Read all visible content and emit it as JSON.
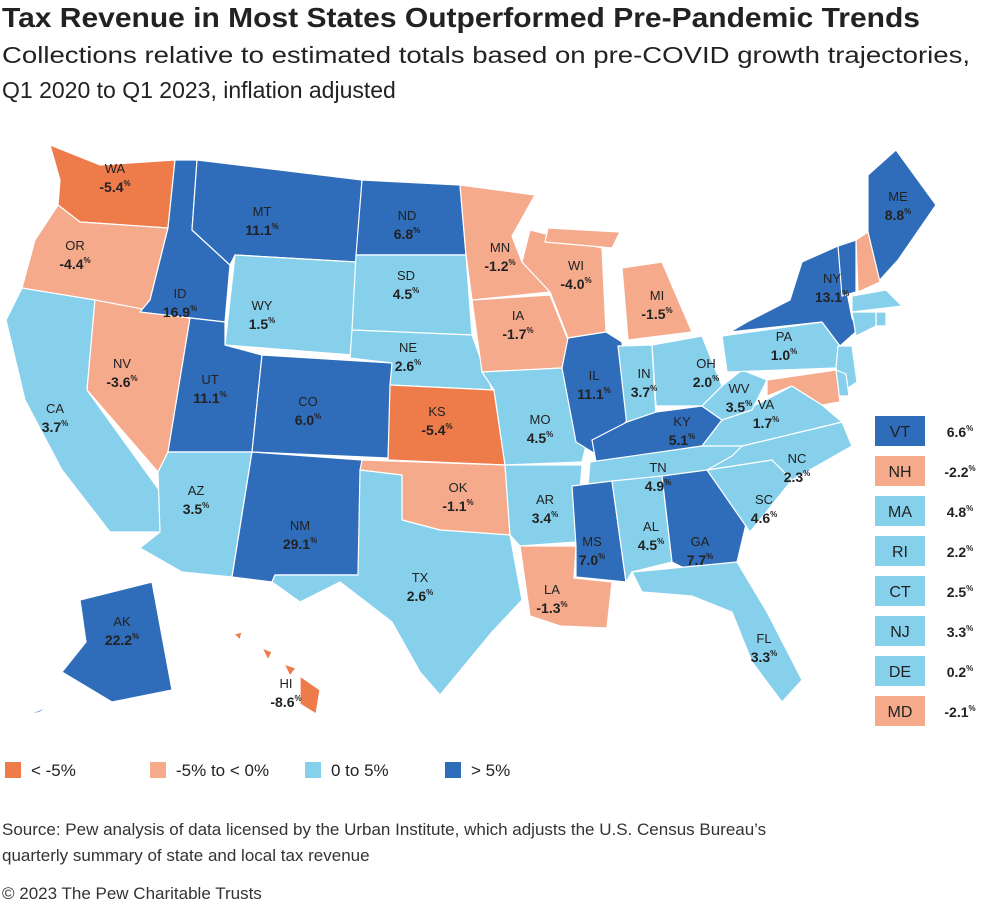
{
  "header": {
    "title": "Tax Revenue in Most States Outperformed Pre-Pandemic Trends",
    "subtitle_lines": [
      "Collections relative to estimated totals based on pre-COVID growth trajectories,",
      "Q1 2020 to Q1 2023, inflation adjusted"
    ]
  },
  "unit": "%",
  "bins": [
    {
      "label": "< -5%",
      "to": -5,
      "color": "#ee7c4b"
    },
    {
      "label": "-5% to < 0%",
      "from": -5,
      "to": 0,
      "color": "#f5aa8b"
    },
    {
      "label": "0 to 5%",
      "from": 0,
      "to": 5,
      "color": "#87d0ec"
    },
    {
      "label": "> 5%",
      "from": 5,
      "color": "#2f6cb9"
    }
  ],
  "states": [
    {
      "abbr": "WA",
      "value": -5.4,
      "label": "-5.4"
    },
    {
      "abbr": "OR",
      "value": -4.4,
      "label": "-4.4"
    },
    {
      "abbr": "CA",
      "value": 3.7,
      "label": "3.7"
    },
    {
      "abbr": "NV",
      "value": -3.6,
      "label": "-3.6"
    },
    {
      "abbr": "ID",
      "value": 16.9,
      "label": "16.9"
    },
    {
      "abbr": "MT",
      "value": 11.1,
      "label": "11.1"
    },
    {
      "abbr": "WY",
      "value": 1.5,
      "label": "1.5"
    },
    {
      "abbr": "UT",
      "value": 11.1,
      "label": "11.1"
    },
    {
      "abbr": "CO",
      "value": 6.0,
      "label": "6.0"
    },
    {
      "abbr": "AZ",
      "value": 3.5,
      "label": "3.5"
    },
    {
      "abbr": "NM",
      "value": 29.1,
      "label": "29.1"
    },
    {
      "abbr": "ND",
      "value": 6.8,
      "label": "6.8"
    },
    {
      "abbr": "SD",
      "value": 4.5,
      "label": "4.5"
    },
    {
      "abbr": "NE",
      "value": 2.6,
      "label": "2.6"
    },
    {
      "abbr": "KS",
      "value": -5.4,
      "label": "-5.4"
    },
    {
      "abbr": "OK",
      "value": -1.1,
      "label": "-1.1"
    },
    {
      "abbr": "TX",
      "value": 2.6,
      "label": "2.6"
    },
    {
      "abbr": "MN",
      "value": -1.2,
      "label": "-1.2"
    },
    {
      "abbr": "IA",
      "value": -1.7,
      "label": "-1.7"
    },
    {
      "abbr": "MO",
      "value": 4.5,
      "label": "4.5"
    },
    {
      "abbr": "AR",
      "value": 3.4,
      "label": "3.4"
    },
    {
      "abbr": "LA",
      "value": -1.3,
      "label": "-1.3"
    },
    {
      "abbr": "WI",
      "value": -4.0,
      "label": "-4.0"
    },
    {
      "abbr": "IL",
      "value": 11.1,
      "label": "11.1"
    },
    {
      "abbr": "MI",
      "value": -1.5,
      "label": "-1.5"
    },
    {
      "abbr": "IN",
      "value": 3.7,
      "label": "3.7"
    },
    {
      "abbr": "OH",
      "value": 2.0,
      "label": "2.0"
    },
    {
      "abbr": "KY",
      "value": 5.1,
      "label": "5.1"
    },
    {
      "abbr": "TN",
      "value": 4.9,
      "label": "4.9"
    },
    {
      "abbr": "MS",
      "value": 7.0,
      "label": "7.0"
    },
    {
      "abbr": "AL",
      "value": 4.5,
      "label": "4.5"
    },
    {
      "abbr": "GA",
      "value": 7.7,
      "label": "7.7"
    },
    {
      "abbr": "FL",
      "value": 3.3,
      "label": "3.3"
    },
    {
      "abbr": "SC",
      "value": 4.6,
      "label": "4.6"
    },
    {
      "abbr": "NC",
      "value": 2.3,
      "label": "2.3"
    },
    {
      "abbr": "VA",
      "value": 1.7,
      "label": "1.7"
    },
    {
      "abbr": "WV",
      "value": 3.5,
      "label": "3.5"
    },
    {
      "abbr": "PA",
      "value": 1.0,
      "label": "1.0"
    },
    {
      "abbr": "NY",
      "value": 13.1,
      "label": "13.1"
    },
    {
      "abbr": "ME",
      "value": 8.8,
      "label": "8.8"
    },
    {
      "abbr": "AK",
      "value": 22.2,
      "label": "22.2"
    },
    {
      "abbr": "HI",
      "value": -8.6,
      "label": "-8.6"
    },
    {
      "abbr": "VT",
      "value": 6.6,
      "label": "6.6"
    },
    {
      "abbr": "NH",
      "value": -2.2,
      "label": "-2.2"
    },
    {
      "abbr": "MA",
      "value": 4.8,
      "label": "4.8"
    },
    {
      "abbr": "RI",
      "value": 2.2,
      "label": "2.2"
    },
    {
      "abbr": "CT",
      "value": 2.5,
      "label": "2.5"
    },
    {
      "abbr": "NJ",
      "value": 3.3,
      "label": "3.3"
    },
    {
      "abbr": "DE",
      "value": 0.2,
      "label": "0.2"
    },
    {
      "abbr": "MD",
      "value": -2.1,
      "label": "-2.1"
    }
  ],
  "source_lines": [
    "Source: Pew analysis of data licensed by the Urban Institute, which adjusts the U.S. Census Bureau’s",
    "quarterly summary of state and local tax revenue"
  ],
  "copyright": "© 2023 The Pew Charitable Trusts"
}
